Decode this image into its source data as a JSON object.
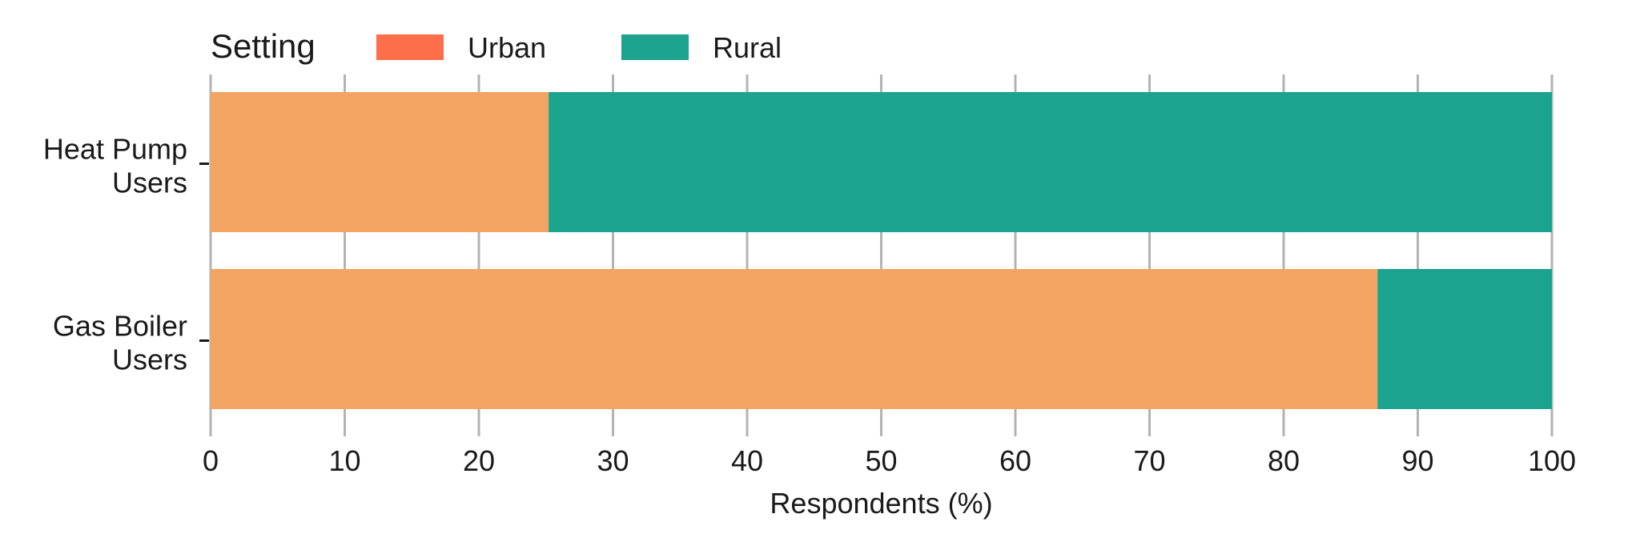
{
  "chart_data": {
    "type": "bar",
    "orientation": "horizontal",
    "stacked": true,
    "categories": [
      "Heat Pump\nUsers",
      "Gas Boiler\nUsers"
    ],
    "series": [
      {
        "name": "Urban",
        "values": [
          25.2,
          87.0
        ],
        "bar_color": "#f3a462",
        "legend_color": "#fd6f4a"
      },
      {
        "name": "Rural",
        "values": [
          74.8,
          13.0
        ],
        "bar_color": "#1ba38d",
        "legend_color": "#1ba38d"
      }
    ],
    "legend_title": "Setting",
    "legend_position": "top-left",
    "xlabel": "Respondents (%)",
    "xlim": [
      0,
      100
    ],
    "xticks": [
      0,
      10,
      20,
      30,
      40,
      50,
      60,
      70,
      80,
      90,
      100
    ],
    "grid": true
  }
}
